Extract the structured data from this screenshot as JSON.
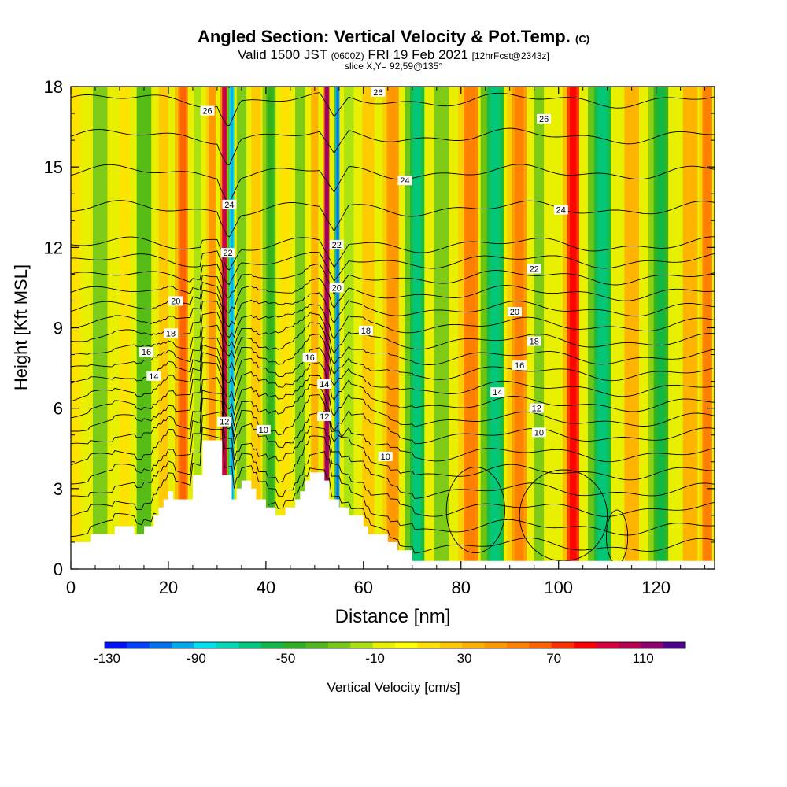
{
  "figure": {
    "title": "Angled Section: Vertical Velocity & Pot.Temp.",
    "title_units": "(C)",
    "valid_prefix": "Valid 1500 JST",
    "valid_utc": "(0600Z)",
    "valid_date": "FRI 19 Feb 2021",
    "forecast": "[12hrFcst@2343z]",
    "slice": "slice X,Y= 92,59@135°"
  },
  "chart_data": {
    "type": "heatmap",
    "title": "Angled Section: Vertical Velocity & Pot.Temp.",
    "xlabel": "Distance [nm]",
    "ylabel": "Height [Kft MSL]",
    "xlim": [
      0,
      132
    ],
    "ylim": [
      0,
      18
    ],
    "xticks": [
      0,
      20,
      40,
      60,
      80,
      100,
      120
    ],
    "yticks": [
      0,
      3,
      6,
      9,
      12,
      15,
      18
    ],
    "xtick_labels": [
      "0",
      "20",
      "40",
      "60",
      "80",
      "100",
      "120"
    ],
    "ytick_labels": [
      "0",
      "3",
      "6",
      "9",
      "12",
      "15",
      "18"
    ],
    "grid": false,
    "colorbar": {
      "label": "Vertical Velocity [cm/s]",
      "tick_labels": [
        "-130",
        "-90",
        "-50",
        "-10",
        "30",
        "70",
        "110"
      ],
      "tick_values": [
        -130,
        -90,
        -50,
        -10,
        30,
        70,
        110
      ],
      "range": [
        -130,
        130
      ],
      "colors": [
        "#0010ff",
        "#0040ff",
        "#0070f0",
        "#00a8f0",
        "#00e0f0",
        "#00d8b8",
        "#00c880",
        "#10b848",
        "#2cb020",
        "#50b818",
        "#78c818",
        "#a8e010",
        "#e8f000",
        "#ffff00",
        "#ffe000",
        "#ffc800",
        "#ffb000",
        "#ff9800",
        "#ff7f00",
        "#ff6000",
        "#ff3000",
        "#ff0000",
        "#d8003c",
        "#b80050",
        "#900070",
        "#500090"
      ]
    },
    "vertical_velocity_bands": [
      {
        "x": 1,
        "w": 2,
        "v": 15
      },
      {
        "x": 6,
        "w": 3,
        "v": -25
      },
      {
        "x": 11,
        "w": 2,
        "v": 20
      },
      {
        "x": 15,
        "w": 3,
        "v": -35
      },
      {
        "x": 19,
        "w": 2,
        "v": 25
      },
      {
        "x": 23,
        "w": 2,
        "v": 55
      },
      {
        "x": 26,
        "w": 1.5,
        "v": -20
      },
      {
        "x": 29,
        "w": 1.5,
        "v": 40
      },
      {
        "x": 31.5,
        "w": 1,
        "v": 95
      },
      {
        "x": 33,
        "w": 1,
        "v": -85
      },
      {
        "x": 35,
        "w": 2,
        "v": -30
      },
      {
        "x": 38,
        "w": 2,
        "v": 25
      },
      {
        "x": 41,
        "w": 2,
        "v": -40
      },
      {
        "x": 44,
        "w": 2,
        "v": 20
      },
      {
        "x": 47,
        "w": 2,
        "v": -30
      },
      {
        "x": 50,
        "w": 1.5,
        "v": 30
      },
      {
        "x": 52.5,
        "w": 1,
        "v": 100
      },
      {
        "x": 54.7,
        "w": 0.8,
        "v": -95
      },
      {
        "x": 57,
        "w": 2,
        "v": -20
      },
      {
        "x": 61,
        "w": 2.5,
        "v": 25
      },
      {
        "x": 66,
        "w": 2.5,
        "v": 40
      },
      {
        "x": 71,
        "w": 3,
        "v": -55
      },
      {
        "x": 76,
        "w": 3,
        "v": -30
      },
      {
        "x": 82,
        "w": 3,
        "v": 50
      },
      {
        "x": 87,
        "w": 3.5,
        "v": -60
      },
      {
        "x": 92,
        "w": 3,
        "v": 45
      },
      {
        "x": 96,
        "w": 2,
        "v": -25
      },
      {
        "x": 103,
        "w": 2.5,
        "v": 70
      },
      {
        "x": 109,
        "w": 3.5,
        "v": -55
      },
      {
        "x": 115,
        "w": 3,
        "v": 35
      },
      {
        "x": 121,
        "w": 3,
        "v": -45
      },
      {
        "x": 127,
        "w": 3,
        "v": 30
      },
      {
        "x": 130.5,
        "w": 2,
        "v": 50
      }
    ],
    "terrain": [
      [
        0,
        1
      ],
      [
        4,
        1
      ],
      [
        4,
        1.3
      ],
      [
        9,
        1.3
      ],
      [
        9,
        1.6
      ],
      [
        13,
        1.6
      ],
      [
        13,
        1.3
      ],
      [
        15,
        1.3
      ],
      [
        15,
        1.6
      ],
      [
        17,
        1.6
      ],
      [
        17,
        2
      ],
      [
        18,
        2
      ],
      [
        18,
        2.3
      ],
      [
        19,
        2.3
      ],
      [
        19,
        2.6
      ],
      [
        20,
        2.6
      ],
      [
        20,
        2.9
      ],
      [
        21,
        2.9
      ],
      [
        21,
        2.6
      ],
      [
        25,
        2.6
      ],
      [
        25,
        3.5
      ],
      [
        27,
        3.5
      ],
      [
        27,
        4.8
      ],
      [
        31,
        4.8
      ],
      [
        31,
        3.5
      ],
      [
        33,
        3.5
      ],
      [
        33,
        2.6
      ],
      [
        34,
        2.6
      ],
      [
        34,
        3
      ],
      [
        35,
        3
      ],
      [
        35,
        3.3
      ],
      [
        37,
        3.3
      ],
      [
        37,
        3
      ],
      [
        38,
        3
      ],
      [
        38,
        2.6
      ],
      [
        40,
        2.6
      ],
      [
        40,
        2.3
      ],
      [
        42,
        2.3
      ],
      [
        42,
        2
      ],
      [
        44,
        2
      ],
      [
        44,
        2.3
      ],
      [
        46,
        2.3
      ],
      [
        46,
        2.6
      ],
      [
        47,
        2.6
      ],
      [
        47,
        2.9
      ],
      [
        48,
        2.9
      ],
      [
        48,
        3.3
      ],
      [
        49,
        3.3
      ],
      [
        49,
        3.6
      ],
      [
        52,
        3.6
      ],
      [
        52,
        3.3
      ],
      [
        53,
        3.3
      ],
      [
        53,
        2.6
      ],
      [
        55,
        2.6
      ],
      [
        55,
        2.3
      ],
      [
        57,
        2.3
      ],
      [
        57,
        2
      ],
      [
        60,
        2
      ],
      [
        60,
        1.6
      ],
      [
        61,
        1.6
      ],
      [
        61,
        1.3
      ],
      [
        65,
        1.3
      ],
      [
        65,
        1
      ],
      [
        67,
        1
      ],
      [
        67,
        0.7
      ],
      [
        70,
        0.7
      ],
      [
        70,
        0.3
      ],
      [
        132,
        0.3
      ],
      [
        132,
        0
      ],
      [
        0,
        0
      ]
    ],
    "pot_temp_contour_labels": [
      {
        "text": "26",
        "x": 28,
        "y": 17.1
      },
      {
        "text": "26",
        "x": 63,
        "y": 17.8
      },
      {
        "text": "26",
        "x": 97,
        "y": 16.8
      },
      {
        "text": "24",
        "x": 68.5,
        "y": 14.5
      },
      {
        "text": "24",
        "x": 100.5,
        "y": 13.4
      },
      {
        "text": "24",
        "x": 32.5,
        "y": 13.6
      },
      {
        "text": "22",
        "x": 32.2,
        "y": 11.8
      },
      {
        "text": "22",
        "x": 54.5,
        "y": 12.1
      },
      {
        "text": "22",
        "x": 95,
        "y": 11.2
      },
      {
        "text": "20",
        "x": 21.5,
        "y": 10
      },
      {
        "text": "20",
        "x": 54.5,
        "y": 10.5
      },
      {
        "text": "20",
        "x": 91,
        "y": 9.6
      },
      {
        "text": "18",
        "x": 20.5,
        "y": 8.8
      },
      {
        "text": "18",
        "x": 60.5,
        "y": 8.9
      },
      {
        "text": "18",
        "x": 95,
        "y": 8.5
      },
      {
        "text": "16",
        "x": 15.5,
        "y": 8.1
      },
      {
        "text": "16",
        "x": 49,
        "y": 7.9
      },
      {
        "text": "16",
        "x": 92,
        "y": 7.6
      },
      {
        "text": "14",
        "x": 17,
        "y": 7.2
      },
      {
        "text": "14",
        "x": 52,
        "y": 6.9
      },
      {
        "text": "14",
        "x": 87.5,
        "y": 6.6
      },
      {
        "text": "12",
        "x": 31.5,
        "y": 5.5
      },
      {
        "text": "12",
        "x": 52,
        "y": 5.7
      },
      {
        "text": "12",
        "x": 95.5,
        "y": 6
      },
      {
        "text": "10",
        "x": 39.5,
        "y": 5.2
      },
      {
        "text": "10",
        "x": 64.5,
        "y": 4.2
      },
      {
        "text": "10",
        "x": 96,
        "y": 5.1
      }
    ],
    "contour_levels": [
      -2,
      0,
      2,
      4,
      6,
      8,
      10,
      11,
      12,
      13,
      14,
      15,
      16,
      17,
      18,
      19,
      20,
      21,
      22,
      23,
      24,
      25,
      26,
      27
    ]
  }
}
